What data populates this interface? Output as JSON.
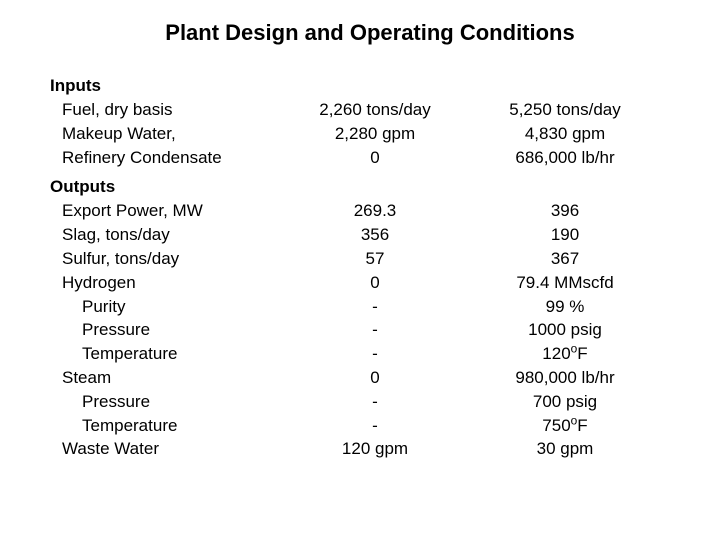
{
  "title": "Plant Design and Operating Conditions",
  "sections": {
    "inputs": {
      "header": "Inputs",
      "rows": [
        {
          "label": "Fuel, dry basis",
          "v1": "2,260 tons/day",
          "v2": "5,250 tons/day"
        },
        {
          "label": "Makeup Water,",
          "v1": "2,280 gpm",
          "v2": "4,830 gpm"
        },
        {
          "label": "Refinery Condensate",
          "v1": "0",
          "v2": "686,000 lb/hr"
        }
      ]
    },
    "outputs": {
      "header": "Outputs",
      "rows": [
        {
          "label": "Export Power, MW",
          "v1": "269.3",
          "v2": "396"
        },
        {
          "label": "Slag, tons/day",
          "v1": "356",
          "v2": "190"
        },
        {
          "label": "Sulfur, tons/day",
          "v1": "57",
          "v2": "367"
        },
        {
          "label": "Hydrogen",
          "v1": "0",
          "v2": "79.4 MMscfd"
        },
        {
          "label": "Purity",
          "v1": "-",
          "v2": "99 %",
          "indent": true
        },
        {
          "label": "Pressure",
          "v1": "-",
          "v2": "1000 psig",
          "indent": true
        },
        {
          "label": "Temperature",
          "v1": "-",
          "v2": "120°F",
          "indent": true,
          "degree": true
        },
        {
          "label": "Steam",
          "v1": "0",
          "v2": "980,000 lb/hr"
        },
        {
          "label": "Pressure",
          "v1": "-",
          "v2": "700 psig",
          "indent": true
        },
        {
          "label": "Temperature",
          "v1": "-",
          "v2": "750°F",
          "indent": true,
          "degree": true
        },
        {
          "label": "Waste Water",
          "v1": "120 gpm",
          "v2": "30 gpm"
        }
      ]
    }
  },
  "styling": {
    "title_fontsize": 22,
    "body_fontsize": 17,
    "text_color": "#000000",
    "background_color": "#ffffff",
    "font_family": "Arial"
  }
}
